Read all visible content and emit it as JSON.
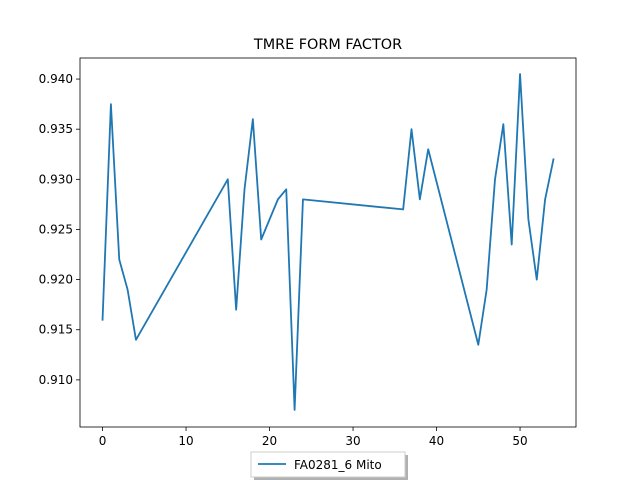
{
  "chart_data": {
    "type": "line",
    "title": "TMRE FORM FACTOR",
    "xlabel": "",
    "ylabel": "",
    "xlim": [
      -2.7,
      56.7
    ],
    "ylim": [
      0.9053,
      0.9421
    ],
    "xticks": [
      0,
      10,
      20,
      30,
      40,
      50
    ],
    "yticks": [
      0.91,
      0.915,
      0.92,
      0.925,
      0.93,
      0.935,
      0.94
    ],
    "xtick_labels": [
      "0",
      "10",
      "20",
      "30",
      "40",
      "50"
    ],
    "ytick_labels": [
      "0.910",
      "0.915",
      "0.920",
      "0.925",
      "0.930",
      "0.935",
      "0.940"
    ],
    "grid": false,
    "legend_position": "lower center, below axes",
    "series": [
      {
        "name": "FA0281_6 Mito",
        "color": "#1f77b4",
        "x": [
          0,
          1,
          2,
          3,
          4,
          15,
          16,
          17,
          18,
          19,
          21,
          22,
          23,
          24,
          36,
          37,
          38,
          39,
          45,
          46,
          47,
          48,
          49,
          50,
          51,
          52,
          53,
          54
        ],
        "y": [
          0.916,
          0.9375,
          0.922,
          0.919,
          0.914,
          0.93,
          0.917,
          0.929,
          0.936,
          0.924,
          0.928,
          0.929,
          0.907,
          0.928,
          0.927,
          0.935,
          0.928,
          0.933,
          0.9135,
          0.919,
          0.93,
          0.9355,
          0.9235,
          0.9405,
          0.926,
          0.92,
          0.928,
          0.932
        ]
      }
    ]
  }
}
